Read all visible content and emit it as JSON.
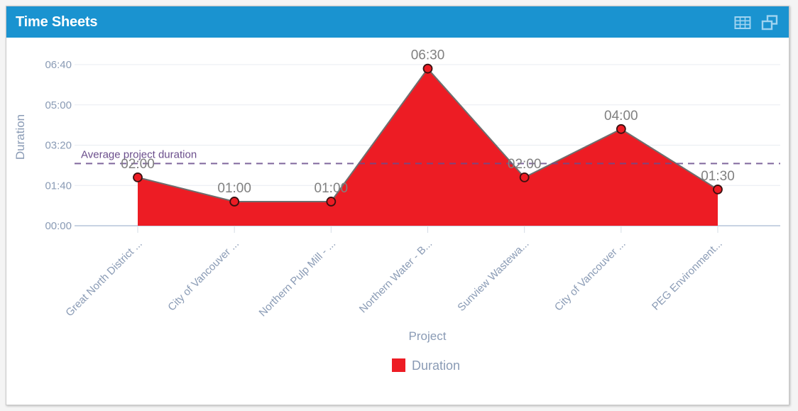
{
  "panel": {
    "title": "Time Sheets",
    "header_color": "#1a93d0",
    "icons": [
      {
        "name": "table-view-icon"
      },
      {
        "name": "popout-window-icon"
      }
    ]
  },
  "chart_data": {
    "type": "area",
    "title": "",
    "xlabel": "Project",
    "ylabel": "Duration",
    "categories": [
      "Great North District ...",
      "City of Vancouver ...",
      "Northern Pulp Mill - ...",
      "Northern Water - B...",
      "Sunview Wastewa...",
      "City of Vancouver ...",
      "PEG Environment..."
    ],
    "series": [
      {
        "name": "Duration",
        "color": "#ed1c24",
        "values_minutes": [
          120,
          60,
          60,
          390,
          120,
          240,
          90
        ],
        "data_labels": [
          "02:00",
          "01:00",
          "01:00",
          "06:30",
          "02:00",
          "04:00",
          "01:30"
        ]
      }
    ],
    "y_ticks_minutes": [
      0,
      100,
      200,
      300,
      400
    ],
    "y_tick_labels": [
      "00:00",
      "01:40",
      "03:20",
      "05:00",
      "06:40"
    ],
    "ylim_minutes": [
      0,
      400
    ],
    "grid": true,
    "reference_line": {
      "label": "Average project duration",
      "value_minutes": 154.3,
      "color": "#6b4e8c",
      "style": "dashed"
    },
    "legend": {
      "position": "bottom-center",
      "entries": [
        {
          "label": "Duration",
          "color": "#ed1c24"
        }
      ]
    }
  }
}
